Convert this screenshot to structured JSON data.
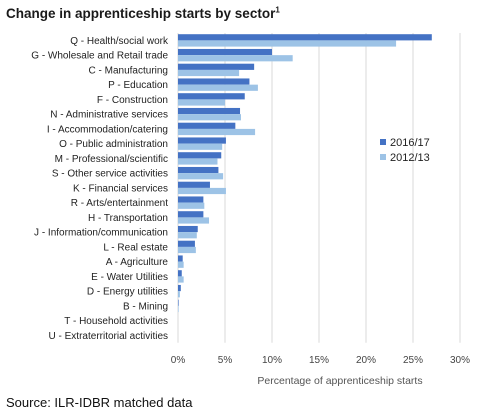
{
  "page": {
    "title": "Change in apprenticeship starts by sector",
    "title_note": "1",
    "source": "Source: ILR-IDBR matched data"
  },
  "chart_data": {
    "type": "bar",
    "orientation": "horizontal",
    "title": "Change in apprenticeship starts by sector",
    "xlabel": "Percentage of apprenticeship starts",
    "ylabel": "",
    "xlim": [
      0,
      30
    ],
    "x_ticks": [
      "0%",
      "5%",
      "10%",
      "15%",
      "20%",
      "25%",
      "30%"
    ],
    "grid": true,
    "legend_position": "right",
    "categories": [
      "Q - Health/social work",
      "G - Wholesale and Retail trade",
      "C - Manufacturing",
      "P - Education",
      "F - Construction",
      "N - Administrative services",
      "I - Accommodation/catering",
      "O - Public administration",
      "M - Professional/scientific",
      "S - Other service activities",
      "K - Financial services",
      "R - Arts/entertainment",
      "H - Transportation",
      "J - Information/communication",
      "L - Real estate",
      "A - Agriculture",
      "E - Water Utilities",
      "D - Energy utilities",
      "B - Mining",
      "T - Household activities",
      "U - Extraterritorial activities"
    ],
    "series": [
      {
        "name": "2016/17",
        "color": "#4472c4",
        "values": [
          27.0,
          10.0,
          8.1,
          7.6,
          7.1,
          6.6,
          6.1,
          5.1,
          4.6,
          4.3,
          3.4,
          2.7,
          2.7,
          2.1,
          1.8,
          0.5,
          0.4,
          0.3,
          0.05,
          0.0,
          0.0
        ]
      },
      {
        "name": "2012/13",
        "color": "#9dc3e6",
        "values": [
          23.2,
          12.2,
          6.5,
          8.5,
          5.0,
          6.7,
          8.2,
          4.7,
          4.2,
          4.8,
          5.1,
          2.8,
          3.3,
          2.0,
          1.9,
          0.6,
          0.6,
          0.2,
          0.05,
          0.0,
          0.0
        ]
      }
    ]
  }
}
